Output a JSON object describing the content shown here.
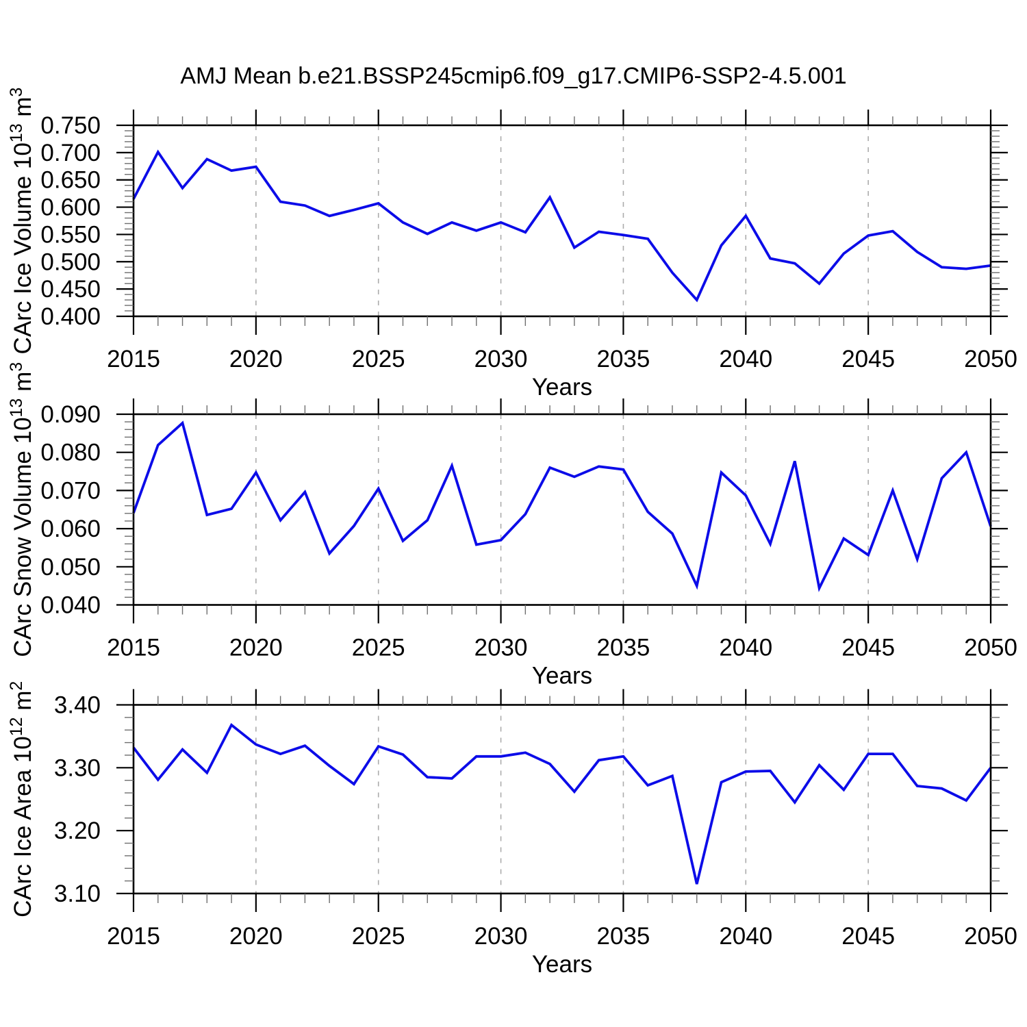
{
  "title": "AMJ Mean b.e21.BSSP245cmip6.f09_g17.CMIP6-SSP2-4.5.001",
  "style": {
    "line_color": "#0c0ce8",
    "grid_color": "#ababab",
    "frame_color": "#000000",
    "minor_tick_color": "#6e6e6e"
  },
  "chart_data": [
    {
      "type": "line",
      "name": "ice-volume",
      "ylabel": "CArc Ice Volume 10^13 m^3",
      "ylabel_parts": [
        {
          "text": "CArc Ice Volume 10",
          "sup": false
        },
        {
          "text": "13",
          "sup": true
        },
        {
          "text": " m",
          "sup": false
        },
        {
          "text": "3",
          "sup": true
        }
      ],
      "xlabel": "Years",
      "ylim": [
        0.4,
        0.75
      ],
      "ytick_step": 0.05,
      "yminor_step": 0.01,
      "ytick_decimals": 3,
      "xlim": [
        2015,
        2050
      ],
      "xtick_step": 5,
      "xminor_step": 1,
      "grid": "vertical-dashed",
      "x": [
        2015,
        2016,
        2017,
        2018,
        2019,
        2020,
        2021,
        2022,
        2023,
        2024,
        2025,
        2026,
        2027,
        2028,
        2029,
        2030,
        2031,
        2032,
        2033,
        2034,
        2035,
        2036,
        2037,
        2038,
        2039,
        2040,
        2041,
        2042,
        2043,
        2044,
        2045,
        2046,
        2047,
        2048,
        2049,
        2050
      ],
      "values": [
        0.615,
        0.701,
        0.635,
        0.688,
        0.667,
        0.674,
        0.61,
        0.603,
        0.584,
        0.595,
        0.607,
        0.572,
        0.551,
        0.572,
        0.557,
        0.572,
        0.554,
        0.618,
        0.526,
        0.555,
        0.549,
        0.542,
        0.48,
        0.43,
        0.53,
        0.584,
        0.506,
        0.497,
        0.46,
        0.515,
        0.548,
        0.556,
        0.518,
        0.49,
        0.487,
        0.493
      ]
    },
    {
      "type": "line",
      "name": "snow-volume",
      "ylabel": "CArc Snow Volume 10^13 m^3",
      "ylabel_parts": [
        {
          "text": "CArc Snow Volume 10",
          "sup": false
        },
        {
          "text": "13",
          "sup": true
        },
        {
          "text": " m",
          "sup": false
        },
        {
          "text": "3",
          "sup": true
        }
      ],
      "xlabel": "Years",
      "ylim": [
        0.04,
        0.09
      ],
      "ytick_step": 0.01,
      "yminor_step": 0.002,
      "ytick_decimals": 3,
      "xlim": [
        2015,
        2050
      ],
      "xtick_step": 5,
      "xminor_step": 1,
      "grid": "vertical-dashed",
      "x": [
        2015,
        2016,
        2017,
        2018,
        2019,
        2020,
        2021,
        2022,
        2023,
        2024,
        2025,
        2026,
        2027,
        2028,
        2029,
        2030,
        2031,
        2032,
        2033,
        2034,
        2035,
        2036,
        2037,
        2038,
        2039,
        2040,
        2041,
        2042,
        2043,
        2044,
        2045,
        2046,
        2047,
        2048,
        2049,
        2050
      ],
      "values": [
        0.0641,
        0.0819,
        0.0877,
        0.0636,
        0.0652,
        0.0747,
        0.0622,
        0.0696,
        0.0535,
        0.0607,
        0.0705,
        0.0568,
        0.0622,
        0.0765,
        0.0558,
        0.057,
        0.0638,
        0.076,
        0.0736,
        0.0763,
        0.0755,
        0.0644,
        0.0587,
        0.045,
        0.0747,
        0.0687,
        0.056,
        0.0777,
        0.0444,
        0.0574,
        0.0531,
        0.07,
        0.052,
        0.0732,
        0.08,
        0.0606
      ]
    },
    {
      "type": "line",
      "name": "ice-area",
      "ylabel": "CArc Ice Area 10^12 m^2",
      "ylabel_parts": [
        {
          "text": "CArc Ice Area 10",
          "sup": false
        },
        {
          "text": "12",
          "sup": true
        },
        {
          "text": " m",
          "sup": false
        },
        {
          "text": "2",
          "sup": true
        }
      ],
      "xlabel": "Years",
      "ylim": [
        3.1,
        3.4
      ],
      "ytick_step": 0.1,
      "yminor_step": 0.02,
      "ytick_decimals": 2,
      "xlim": [
        2015,
        2050
      ],
      "xtick_step": 5,
      "xminor_step": 1,
      "grid": "vertical-dashed",
      "x": [
        2015,
        2016,
        2017,
        2018,
        2019,
        2020,
        2021,
        2022,
        2023,
        2024,
        2025,
        2026,
        2027,
        2028,
        2029,
        2030,
        2031,
        2032,
        2033,
        2034,
        2035,
        2036,
        2037,
        2038,
        2039,
        2040,
        2041,
        2042,
        2043,
        2044,
        2045,
        2046,
        2047,
        2048,
        2049,
        2050
      ],
      "values": [
        3.332,
        3.281,
        3.329,
        3.292,
        3.368,
        3.337,
        3.322,
        3.335,
        3.303,
        3.274,
        3.334,
        3.321,
        3.285,
        3.283,
        3.318,
        3.318,
        3.324,
        3.306,
        3.262,
        3.312,
        3.318,
        3.272,
        3.287,
        3.115,
        3.277,
        3.294,
        3.295,
        3.245,
        3.304,
        3.265,
        3.322,
        3.322,
        3.271,
        3.267,
        3.248,
        3.3
      ]
    }
  ]
}
